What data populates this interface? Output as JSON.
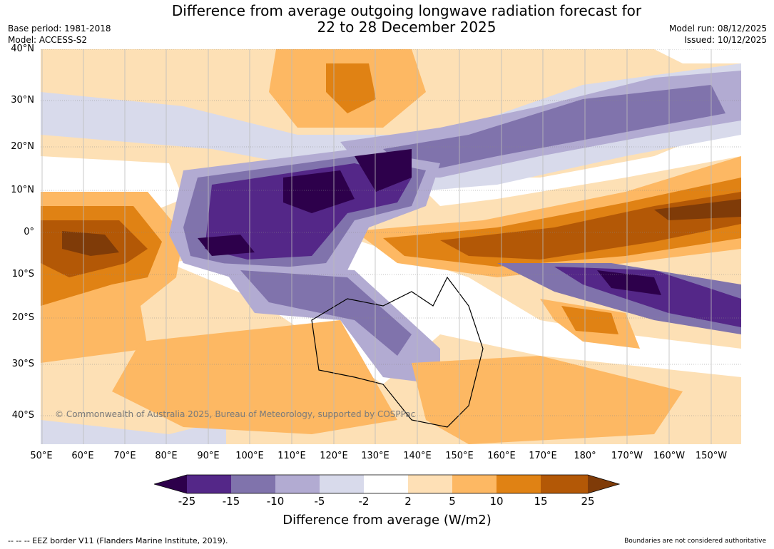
{
  "title": {
    "line1": "Difference from average outgoing longwave radiation forecast for",
    "line2": "22 to 28 December 2025"
  },
  "meta": {
    "base_period": "Base period: 1981-2018",
    "model": "Model: ACCESS-S2",
    "model_run": "Model run: 08/12/2025",
    "issued": "Issued: 10/12/2025"
  },
  "map": {
    "lat_labels": [
      "40°N",
      "30°N",
      "20°N",
      "10°N",
      "0°",
      "10°S",
      "20°S",
      "30°S",
      "40°S"
    ],
    "lon_labels": [
      "50°E",
      "60°E",
      "70°E",
      "80°E",
      "90°E",
      "100°E",
      "110°E",
      "120°E",
      "130°E",
      "140°E",
      "150°E",
      "160°E",
      "170°E",
      "180°",
      "170°W",
      "160°W",
      "150°W"
    ],
    "copyright": "© Commonwealth of Australia 2025, Bureau of Meteorology, supported by COSPPac"
  },
  "colorbar": {
    "ticks": [
      "-25",
      "-15",
      "-10",
      "-5",
      "-2",
      "2",
      "5",
      "10",
      "15",
      "25"
    ],
    "colors": [
      "#2d004b",
      "#542788",
      "#8073ac",
      "#b2abd2",
      "#d8daeb",
      "#ffffff",
      "#fee0b6",
      "#fdb863",
      "#e08214",
      "#b35806",
      "#7f3b08"
    ],
    "title": "Difference from average (W/m2)"
  },
  "footer": {
    "eez_note": "--  --  -- EEZ border V11 (Flanders Marine Institute, 2019).",
    "boundaries_note": "Boundaries are not considered authoritative"
  }
}
